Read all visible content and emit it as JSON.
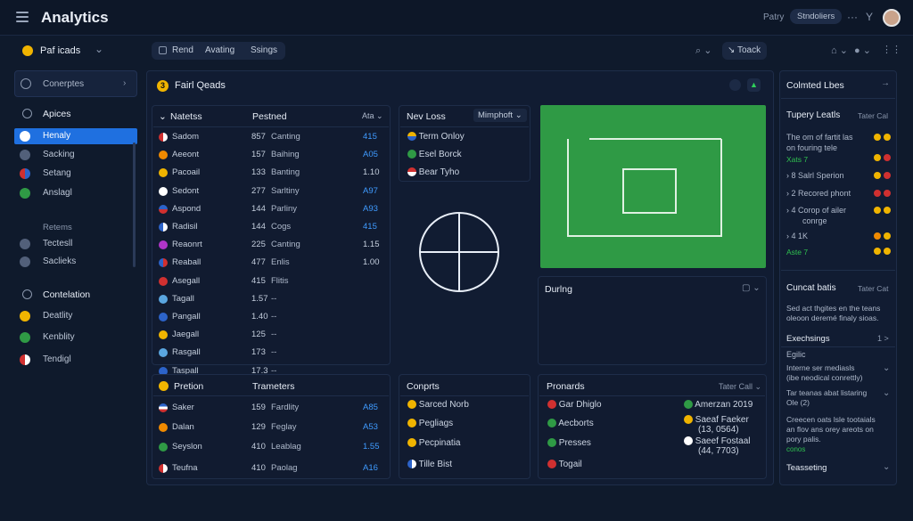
{
  "header": {
    "title": "Analytics",
    "right_text": "Patry",
    "right_pill": "Stndoliers",
    "more": "···",
    "filter": "Y"
  },
  "workspace": {
    "label": "Paf icads",
    "chevron": "⌄"
  },
  "toolbar": {
    "tabs": [
      "Rend",
      "Avating",
      "Ssings"
    ],
    "right_label": "Toack"
  },
  "sidebar": {
    "item_top": "Conerptes",
    "group1_title": "Apices",
    "items1": [
      "Henaly",
      "Sacking",
      "Setang",
      "Anslagl"
    ],
    "group2_title": "Retems",
    "items2": [
      "Tectesll",
      "Saclieks"
    ],
    "group3_title": "Contelation",
    "items3": [
      "Deatlity",
      "Kenblity",
      "Tendigl"
    ]
  },
  "main_panel": {
    "title": "Fairl Qeads",
    "number": "3"
  },
  "table1": {
    "col1": "Natetss",
    "col2": "Pestned",
    "col3": "Ata",
    "rows": [
      {
        "name": "Sadom",
        "n": "857",
        "s": "Canting",
        "v": "415"
      },
      {
        "name": "Aeeont",
        "n": "157",
        "s": "Baihing",
        "v": "A05"
      },
      {
        "name": "Pacoail",
        "n": "133",
        "s": "Banting",
        "v": "1.10"
      },
      {
        "name": "Sedont",
        "n": "277",
        "s": "Sarltiny",
        "v": "A97"
      },
      {
        "name": "Aspond",
        "n": "144",
        "s": "Parliny",
        "v": "A93"
      },
      {
        "name": "Radisil",
        "n": "144",
        "s": "Cogs",
        "v": "415"
      },
      {
        "name": "Reaonrt",
        "n": "225",
        "s": "Canting",
        "v": "1.15"
      },
      {
        "name": "Reaball",
        "n": "477",
        "s": "Enlis",
        "v": "1.00"
      },
      {
        "name": "Asegall",
        "n": "415",
        "s": "Flitis",
        "v": ""
      },
      {
        "name": "Tagall",
        "n": "1.57",
        "s": "--",
        "v": ""
      },
      {
        "name": "Pangall",
        "n": "1.40",
        "s": "--",
        "v": ""
      },
      {
        "name": "Jaegall",
        "n": "125",
        "s": "--",
        "v": ""
      },
      {
        "name": "Rasgall",
        "n": "173",
        "s": "--",
        "v": ""
      },
      {
        "name": "Taspall",
        "n": "17.3",
        "s": "--",
        "v": ""
      }
    ]
  },
  "newloss": {
    "title": "Nev Loss",
    "dropdown": "Mimphoft",
    "items": [
      "Term Onloy",
      "Esel Borck",
      "Bear Tyho"
    ]
  },
  "during": {
    "title": "Durlng"
  },
  "prelion": {
    "title": "Pretion",
    "col2": "Trameters",
    "rows": [
      {
        "name": "Saker",
        "n": "159",
        "s": "Fardlity",
        "v": "A85"
      },
      {
        "name": "Dalan",
        "n": "129",
        "s": "Feglay",
        "v": "A53"
      },
      {
        "name": "Seyslon",
        "n": "410",
        "s": "Leablag",
        "v": "1.55"
      },
      {
        "name": "Teufna",
        "n": "410",
        "s": "Paolag",
        "v": "A16"
      }
    ]
  },
  "conparts": {
    "title": "Conprts",
    "items": [
      "Sarced Norb",
      "Pegliags",
      "Pecpinatia",
      "Tille Bist"
    ]
  },
  "pronards": {
    "title": "Pronards",
    "right": "Tater Call",
    "left_items": [
      "Gar Dhiglo",
      "Aecborts",
      "Presses",
      "Togail"
    ],
    "right_items": [
      "Amerzan 2019",
      "Saeaf Faeker",
      "(13, 0564)",
      "Saeef Fostaal",
      "(44, 7703)"
    ]
  },
  "right_panel": {
    "top": "Colmted Lbes",
    "sec1_title": "Tupery Leatls",
    "sec1_right": "Tater Cal",
    "sec1_text1": "The om of fartit las",
    "sec1_text2": "on fouring tele",
    "green1": "Xats 7",
    "list": [
      {
        "n": "8",
        "t": "Salrl Sperion"
      },
      {
        "n": "2",
        "t": "Recored phont"
      },
      {
        "n": "4",
        "t": "Corop of ailer"
      },
      {
        "n": "",
        "t": "conrge"
      },
      {
        "n": "4",
        "t": "1K"
      }
    ],
    "green2": "Aste 7",
    "sec2_title": "Cuncat batis",
    "sec2_right": "Tater Cat",
    "sec2_text1": "Sed act thgites en the teans",
    "sec2_text2": "oleoon deremé finaly sioas.",
    "exchange": "Exechsings",
    "exchange_right": "1 >",
    "eglic": "Egilic",
    "faq1a": "Interne ser mediasls",
    "faq1b": "(ibe neodical conrettly)",
    "faq2a": "Tar teanas abat listaring",
    "faq2b": "Ole (2)",
    "para1": "Creecen oats lsle tootaials",
    "para2": "an flov ans orey areots on",
    "para3": "pory palis.",
    "green3": "conos",
    "bottom": "Teasseting"
  },
  "colors": {
    "accent": "#1f70e0",
    "field": "#2f9a45",
    "blue_value": "#3f9bff",
    "bg": "#0f1a2c"
  }
}
